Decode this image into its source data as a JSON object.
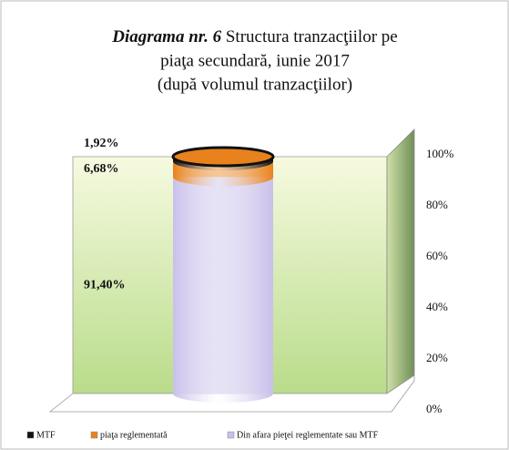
{
  "chart_data": {
    "type": "stacked-cylinder",
    "title_lead": "Diagrama nr. 6",
    "title_lines": [
      "Structura tranzacţiilor pe",
      "piaţa secundară, iunie 2017",
      "(după volumul tranzacţiilor)"
    ],
    "categories": [
      null
    ],
    "series": [
      {
        "name": "MTF",
        "color": "#111111",
        "values": [
          1.92
        ],
        "value_labels": [
          "1,92%"
        ]
      },
      {
        "name": "piaţa reglementată",
        "color": "#e8821c",
        "values": [
          6.68
        ],
        "value_labels": [
          "6,68%"
        ]
      },
      {
        "name": "Din afara pieţei reglementate sau MTF",
        "color": "#c9c0ea",
        "values": [
          91.4
        ],
        "value_labels": [
          "91,40%"
        ]
      }
    ],
    "ylim": [
      0,
      100
    ],
    "yticks": [
      {
        "value": 0,
        "label": "0%"
      },
      {
        "value": 20,
        "label": "20%"
      },
      {
        "value": 40,
        "label": "40%"
      },
      {
        "value": 60,
        "label": "60%"
      },
      {
        "value": 80,
        "label": "80%"
      },
      {
        "value": 100,
        "label": "100%"
      }
    ],
    "legend": "bottom"
  }
}
